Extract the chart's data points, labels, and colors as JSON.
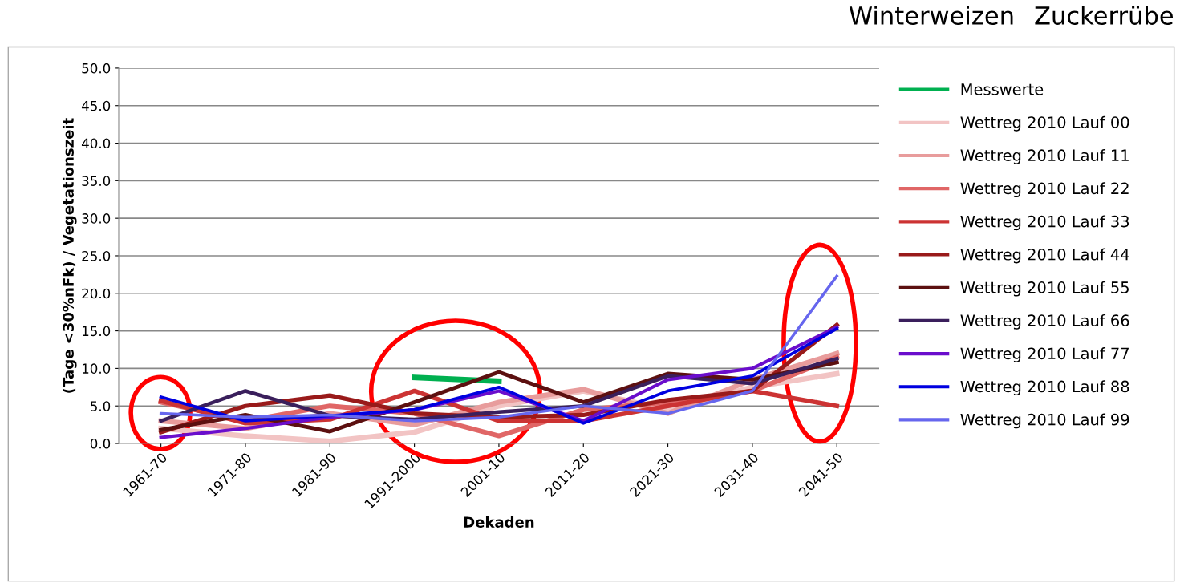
{
  "chart_data": {
    "type": "line",
    "title": "Winterweizen",
    "subtitle": "Zuckerrübe",
    "xlabel": "Dekaden",
    "ylabel": "(Tage <30%nFk) / Vegetationszeit",
    "categories": [
      "1961-70",
      "1971-80",
      "1981-90",
      "1991-2000",
      "2001-10",
      "2011-20",
      "2021-30",
      "2031-40",
      "2041-50"
    ],
    "ylim": [
      0,
      50
    ],
    "yticks": [
      {
        "value": 0,
        "label": "0.0"
      },
      {
        "value": 5,
        "label": "5.0"
      },
      {
        "value": 10,
        "label": "10.0"
      },
      {
        "value": 15,
        "label": "15.0"
      },
      {
        "value": 20,
        "label": "20.0"
      },
      {
        "value": 25,
        "label": "25.0"
      },
      {
        "value": 30,
        "label": "30.0"
      },
      {
        "value": 35,
        "label": "35.0"
      },
      {
        "value": 40,
        "label": "40.0"
      },
      {
        "value": 45,
        "label": "45.0"
      },
      {
        "value": 50,
        "label": "50.0"
      }
    ],
    "grid": "y",
    "legend": "right",
    "marker": "none",
    "line_style": "solid",
    "series": [
      {
        "name": "Messwerte",
        "color": "#00b050",
        "values": [
          null,
          null,
          null,
          8.8,
          8.3,
          null,
          null,
          null,
          null
        ]
      },
      {
        "name": "Wettreg 2010 Lauf 00",
        "color": "#f2c4c4",
        "values": [
          2.0,
          1.0,
          0.3,
          1.5,
          5.0,
          7.0,
          4.5,
          7.5,
          9.3
        ]
      },
      {
        "name": "Wettreg 2010 Lauf 11",
        "color": "#e89c9c",
        "values": [
          3.0,
          2.0,
          4.0,
          2.5,
          5.5,
          7.2,
          4.0,
          8.5,
          12.0
        ]
      },
      {
        "name": "Wettreg 2010 Lauf 22",
        "color": "#e06666",
        "values": [
          5.5,
          3.0,
          5.0,
          4.0,
          1.0,
          4.5,
          5.5,
          7.0,
          11.5
        ]
      },
      {
        "name": "Wettreg 2010 Lauf 33",
        "color": "#cc3333",
        "values": [
          5.7,
          2.7,
          3.2,
          7.0,
          3.0,
          3.0,
          5.0,
          7.0,
          5.0
        ]
      },
      {
        "name": "Wettreg 2010 Lauf 44",
        "color": "#991a1a",
        "values": [
          1.5,
          5.0,
          6.4,
          4.0,
          3.5,
          3.8,
          5.8,
          7.0,
          15.8
        ]
      },
      {
        "name": "Wettreg 2010 Lauf 55",
        "color": "#5c1010",
        "values": [
          1.8,
          3.8,
          1.6,
          5.5,
          9.5,
          5.5,
          9.3,
          8.5,
          10.8
        ]
      },
      {
        "name": "Wettreg 2010 Lauf 66",
        "color": "#3a1f5c",
        "values": [
          3.0,
          7.0,
          3.7,
          3.2,
          4.2,
          5.0,
          9.0,
          8.0,
          11.3
        ]
      },
      {
        "name": "Wettreg 2010 Lauf 77",
        "color": "#6a0dcc",
        "values": [
          0.8,
          2.0,
          3.5,
          4.5,
          7.0,
          3.0,
          8.5,
          10.0,
          15.5
        ]
      },
      {
        "name": "Wettreg 2010 Lauf 88",
        "color": "#0000e0",
        "values": [
          6.2,
          3.0,
          3.7,
          4.5,
          7.5,
          2.7,
          7.0,
          9.0,
          15.3
        ]
      },
      {
        "name": "Wettreg 2010 Lauf 99",
        "color": "#6666ee",
        "values": [
          4.0,
          3.5,
          3.8,
          3.0,
          3.5,
          5.0,
          4.0,
          7.0,
          22.3
        ]
      }
    ]
  }
}
